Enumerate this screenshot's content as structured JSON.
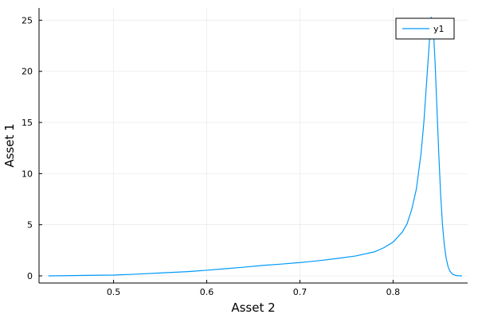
{
  "chart_data": {
    "type": "line",
    "xlabel": "Asset 2",
    "ylabel": "Asset 1",
    "xlim": [
      0.42,
      0.88
    ],
    "ylim": [
      -0.7,
      26.2
    ],
    "xticks": [
      0.5,
      0.6,
      0.7,
      0.8
    ],
    "xtick_labels": [
      "0.5",
      "0.6",
      "0.7",
      "0.8"
    ],
    "yticks": [
      0,
      5,
      10,
      15,
      20,
      25
    ],
    "ytick_labels": [
      "0",
      "5",
      "10",
      "15",
      "20",
      "25"
    ],
    "grid": true,
    "legend": "top-right",
    "series": [
      {
        "name": "y1",
        "color": "#009af9",
        "x": [
          0.43,
          0.45,
          0.47,
          0.5,
          0.52,
          0.55,
          0.58,
          0.6,
          0.62,
          0.64,
          0.66,
          0.68,
          0.7,
          0.72,
          0.74,
          0.76,
          0.78,
          0.79,
          0.8,
          0.81,
          0.815,
          0.82,
          0.825,
          0.83,
          0.833,
          0.836,
          0.839,
          0.841,
          0.843,
          0.845,
          0.847,
          0.849,
          0.851,
          0.853,
          0.855,
          0.857,
          0.859,
          0.861,
          0.864,
          0.867,
          0.87,
          0.874
        ],
        "y": [
          0.0,
          0.02,
          0.05,
          0.08,
          0.15,
          0.28,
          0.42,
          0.55,
          0.7,
          0.85,
          1.02,
          1.15,
          1.3,
          1.48,
          1.7,
          1.95,
          2.35,
          2.75,
          3.3,
          4.3,
          5.1,
          6.5,
          8.5,
          12.0,
          15.0,
          19.0,
          23.0,
          25.3,
          24.5,
          21.0,
          16.5,
          12.0,
          8.0,
          5.0,
          3.0,
          1.7,
          0.9,
          0.45,
          0.15,
          0.05,
          0.01,
          0.0
        ]
      }
    ]
  }
}
